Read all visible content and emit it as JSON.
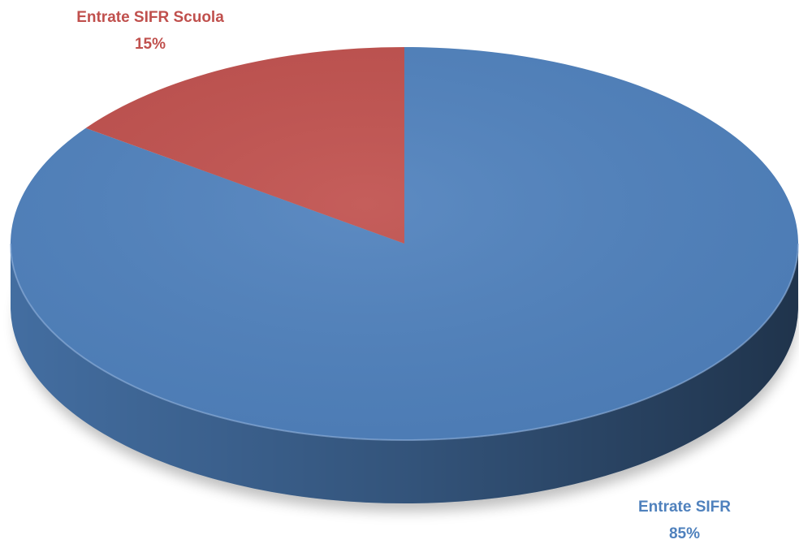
{
  "chart_data": {
    "type": "pie",
    "categories": [
      "Entrate SIFR",
      "Entrate SIFR Scuola"
    ],
    "values": [
      85,
      15
    ],
    "value_labels": [
      "85%",
      "15%"
    ],
    "colors": [
      "#4f81bd",
      "#c0504d"
    ]
  }
}
